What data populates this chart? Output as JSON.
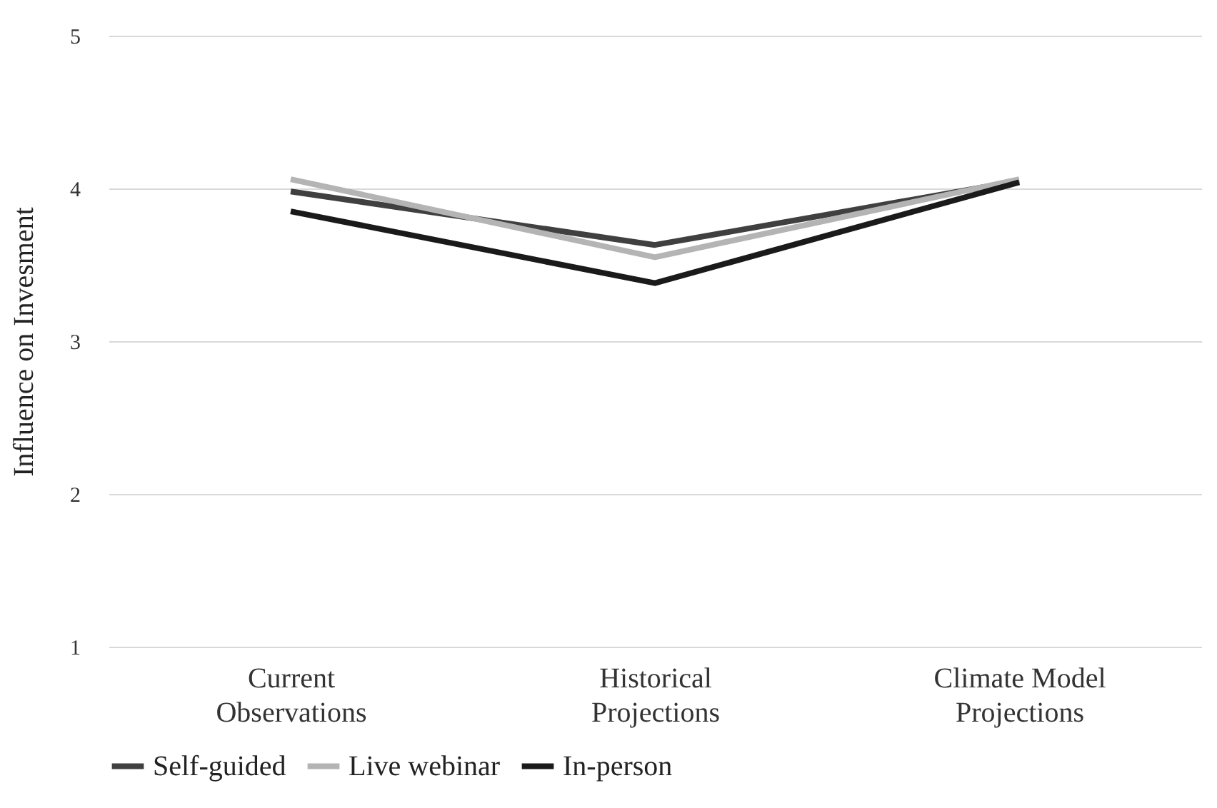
{
  "chart_data": {
    "type": "line",
    "ylabel": "Influence on Invesment",
    "categories": [
      "Current Observations",
      "Historical Projections",
      "Climate Model Projections"
    ],
    "series": [
      {
        "name": "Self-guided",
        "color": "#404040",
        "values": [
          3.98,
          3.63,
          4.05
        ]
      },
      {
        "name": "Live webinar",
        "color": "#b4b4b4",
        "values": [
          4.06,
          3.55,
          4.06
        ]
      },
      {
        "name": "In-person",
        "color": "#1a1a1a",
        "values": [
          3.85,
          3.38,
          4.04
        ]
      }
    ],
    "ylim": [
      1,
      5
    ],
    "yticks": [
      1,
      2,
      3,
      4,
      5
    ],
    "grid": "y",
    "legend": "bottom",
    "marker": "none",
    "line_style": "solid"
  }
}
